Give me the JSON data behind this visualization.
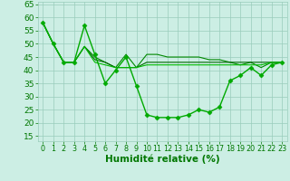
{
  "line_main": {
    "x": [
      0,
      1,
      2,
      3,
      4,
      5,
      6,
      7,
      8,
      9,
      10,
      11,
      12,
      13,
      14,
      15,
      16,
      17,
      18,
      19,
      20,
      21,
      22,
      23
    ],
    "y": [
      58,
      50,
      43,
      43,
      57,
      46,
      35,
      40,
      45,
      34,
      23,
      22,
      22,
      22,
      23,
      25,
      24,
      26,
      36,
      38,
      41,
      38,
      42,
      43
    ],
    "color": "#00aa00",
    "linewidth": 1.0,
    "marker": "D",
    "markersize": 2.5
  },
  "line_avg1": {
    "x": [
      0,
      1,
      2,
      3,
      4,
      5,
      6,
      7,
      8,
      9,
      10,
      11,
      12,
      13,
      14,
      15,
      16,
      17,
      18,
      19,
      20,
      21,
      22,
      23
    ],
    "y": [
      58,
      50,
      43,
      43,
      49,
      45,
      43,
      41,
      46,
      41,
      46,
      46,
      45,
      45,
      45,
      45,
      44,
      44,
      43,
      42,
      43,
      41,
      43,
      43
    ],
    "color": "#008800",
    "linewidth": 0.8,
    "marker": null
  },
  "line_avg2": {
    "x": [
      0,
      1,
      2,
      3,
      4,
      5,
      6,
      7,
      8,
      9,
      10,
      11,
      12,
      13,
      14,
      15,
      16,
      17,
      18,
      19,
      20,
      21,
      22,
      23
    ],
    "y": [
      58,
      50,
      43,
      43,
      49,
      44,
      43,
      41,
      41,
      41,
      43,
      43,
      43,
      43,
      43,
      43,
      43,
      43,
      43,
      43,
      43,
      43,
      43,
      43
    ],
    "color": "#006600",
    "linewidth": 0.8,
    "marker": null
  },
  "line_avg3": {
    "x": [
      0,
      1,
      2,
      3,
      4,
      5,
      6,
      7,
      8,
      9,
      10,
      11,
      12,
      13,
      14,
      15,
      16,
      17,
      18,
      19,
      20,
      21,
      22,
      23
    ],
    "y": [
      58,
      50,
      43,
      43,
      49,
      43,
      42,
      41,
      41,
      41,
      42,
      42,
      42,
      42,
      42,
      42,
      42,
      42,
      42,
      42,
      42,
      42,
      43,
      43
    ],
    "color": "#00bb00",
    "linewidth": 0.8,
    "marker": null
  },
  "xlabel": "Humidité relative (%)",
  "yticks": [
    15,
    20,
    25,
    30,
    35,
    40,
    45,
    50,
    55,
    60,
    65
  ],
  "xticks": [
    0,
    1,
    2,
    3,
    4,
    5,
    6,
    7,
    8,
    9,
    10,
    11,
    12,
    13,
    14,
    15,
    16,
    17,
    18,
    19,
    20,
    21,
    22,
    23
  ],
  "xlim": [
    0,
    23
  ],
  "ylim": [
    13,
    66
  ],
  "background_color": "#cceee4",
  "grid_color": "#99ccbb",
  "line_color": "#007700",
  "xlabel_fontsize": 7.5,
  "ytick_fontsize": 6.5,
  "xtick_fontsize": 5.8
}
